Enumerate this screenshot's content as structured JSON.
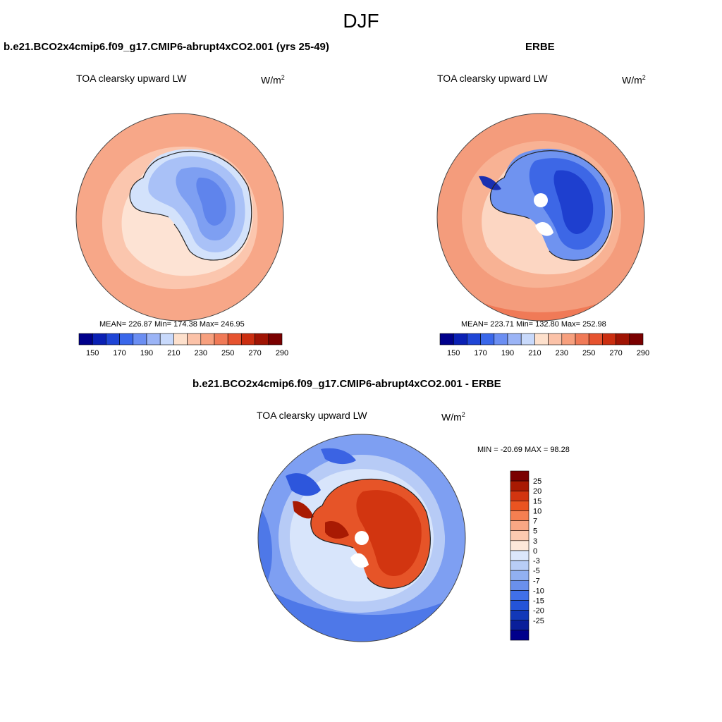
{
  "figure": {
    "season": "DJF"
  },
  "left_panel": {
    "title": "b.e21.BCO2x4cmip6.f09_g17.CMIP6-abrupt4xCO2.001 (yrs 25-49)",
    "variable": "TOA clearsky upward LW",
    "units_base": "W/m",
    "units_exp": "2",
    "stats": "MEAN= 226.87  Min= 174.38  Max= 246.95"
  },
  "right_panel": {
    "title": "ERBE",
    "variable": "TOA clearsky upward LW",
    "units_base": "W/m",
    "units_exp": "2",
    "stats": "MEAN= 223.71  Min= 132.80  Max= 252.98"
  },
  "diff_panel": {
    "title": "b.e21.BCO2x4cmip6.f09_g17.CMIP6-abrupt4xCO2.001 - ERBE",
    "variable": "TOA clearsky upward LW",
    "units_base": "W/m",
    "units_exp": "2",
    "stats": "MIN = -20.69 MAX =  98.28"
  },
  "colorbar_abs": {
    "colors": [
      "#00008b",
      "#0a20b4",
      "#1f45d6",
      "#3a67ea",
      "#6b8ef2",
      "#9bb4f6",
      "#c8d9fb",
      "#fde0cc",
      "#fbc2a8",
      "#f7a07e",
      "#f07a57",
      "#e6532f",
      "#cb2e10",
      "#a01404",
      "#7a0000"
    ],
    "ticks": [
      "150",
      "170",
      "190",
      "210",
      "230",
      "250",
      "270",
      "290"
    ]
  },
  "colorbar_diff": {
    "colors": [
      "#7a0000",
      "#a81a03",
      "#d23510",
      "#ea5421",
      "#f57f51",
      "#f9a784",
      "#fccab0",
      "#fde8da",
      "#dbe7fb",
      "#b8cdf6",
      "#91b0f1",
      "#6a90ec",
      "#4070e8",
      "#2454d8",
      "#1238b8",
      "#0a1f9a",
      "#00008b"
    ],
    "ticks": [
      "25",
      "20",
      "15",
      "10",
      "7",
      "5",
      "3",
      "0",
      "-3",
      "-5",
      "-7",
      "-10",
      "-15",
      "-20",
      "-25"
    ]
  }
}
